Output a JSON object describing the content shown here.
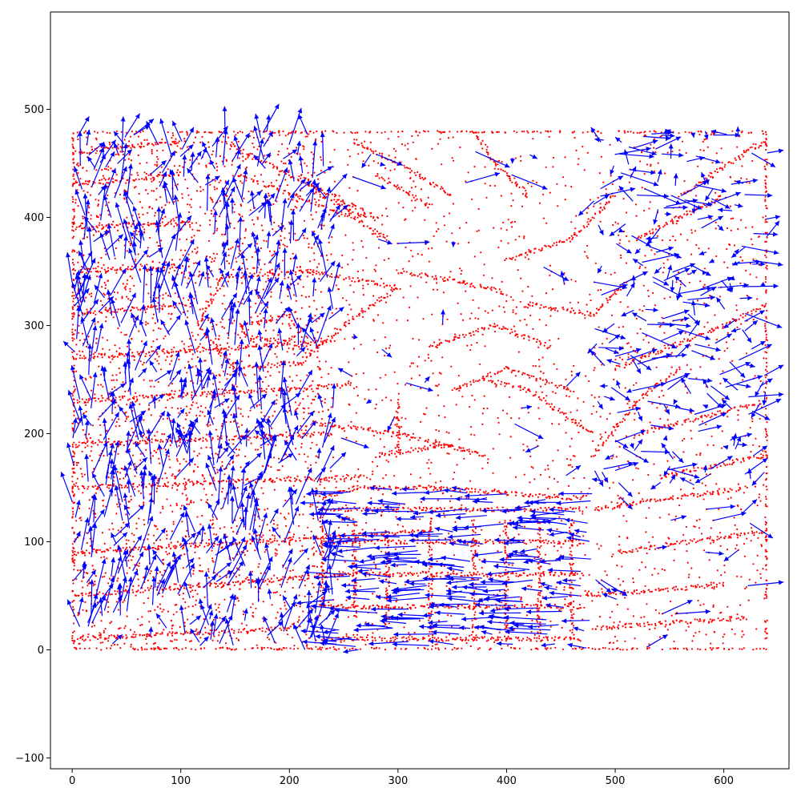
{
  "chart_data": {
    "type": "scatter",
    "title": "",
    "xlabel": "",
    "ylabel": "",
    "xlim": [
      -20,
      660
    ],
    "ylim": [
      -110,
      590
    ],
    "grid": false,
    "legend": "none",
    "x_ticks": [
      0,
      100,
      200,
      300,
      400,
      500,
      600
    ],
    "x_tick_labels": [
      "0",
      "100",
      "200",
      "300",
      "400",
      "500",
      "600"
    ],
    "y_ticks": [
      -100,
      0,
      100,
      200,
      300,
      400,
      500
    ],
    "y_tick_labels": [
      "−100",
      "0",
      "100",
      "200",
      "300",
      "400",
      "500"
    ],
    "point_extent": {
      "x": [
        0,
        640
      ],
      "y": [
        0,
        480
      ]
    },
    "series": [
      {
        "kind": "points",
        "color": "#ff0000",
        "paths": [
          [
            [
              0,
              0
            ],
            [
              640,
              0
            ]
          ],
          [
            [
              0,
              0
            ],
            [
              0,
              480
            ]
          ],
          [
            [
              640,
              0
            ],
            [
              640,
              480
            ]
          ],
          [
            [
              0,
              480
            ],
            [
              640,
              480
            ]
          ],
          [
            [
              155,
              300
            ],
            [
              200,
              310
            ],
            [
              210,
              295
            ],
            [
              200,
              285
            ],
            [
              160,
              290
            ],
            [
              155,
              300
            ]
          ],
          [
            [
              115,
              300
            ],
            [
              140,
              345
            ],
            [
              220,
              350
            ],
            [
              300,
              335
            ],
            [
              250,
              300
            ],
            [
              210,
              265
            ],
            [
              150,
              260
            ],
            [
              115,
              300
            ]
          ],
          [
            [
              0,
              10
            ],
            [
              200,
              20
            ]
          ],
          [
            [
              0,
              50
            ],
            [
              250,
              70
            ]
          ],
          [
            [
              0,
              90
            ],
            [
              330,
              110
            ]
          ],
          [
            [
              0,
              150
            ],
            [
              270,
              160
            ]
          ],
          [
            [
              0,
              190
            ],
            [
              240,
              200
            ]
          ],
          [
            [
              0,
              230
            ],
            [
              260,
              245
            ]
          ],
          [
            [
              0,
              270
            ],
            [
              240,
              285
            ]
          ],
          [
            [
              0,
              310
            ],
            [
              110,
              320
            ]
          ],
          [
            [
              0,
              350
            ],
            [
              100,
              355
            ]
          ],
          [
            [
              0,
              390
            ],
            [
              110,
              395
            ]
          ],
          [
            [
              0,
              430
            ],
            [
              100,
              440
            ]
          ],
          [
            [
              0,
              460
            ],
            [
              100,
              470
            ]
          ],
          [
            [
              140,
              470
            ],
            [
              200,
              440
            ],
            [
              280,
              400
            ]
          ],
          [
            [
              150,
              440
            ],
            [
              260,
              400
            ],
            [
              290,
              380
            ]
          ],
          [
            [
              260,
              470
            ],
            [
              300,
              450
            ],
            [
              350,
              420
            ]
          ],
          [
            [
              280,
              440
            ],
            [
              330,
              410
            ]
          ],
          [
            [
              210,
              440
            ],
            [
              230,
              420
            ],
            [
              270,
              400
            ]
          ],
          [
            [
              220,
              210
            ],
            [
              300,
              200
            ],
            [
              380,
              180
            ]
          ],
          [
            [
              350,
              240
            ],
            [
              400,
              260
            ],
            [
              460,
              240
            ]
          ],
          [
            [
              330,
              280
            ],
            [
              390,
              300
            ],
            [
              440,
              280
            ]
          ],
          [
            [
              300,
              350
            ],
            [
              360,
              340
            ],
            [
              400,
              330
            ]
          ],
          [
            [
              370,
              480
            ],
            [
              390,
              450
            ],
            [
              420,
              420
            ]
          ],
          [
            [
              400,
              360
            ],
            [
              460,
              380
            ],
            [
              500,
              420
            ]
          ],
          [
            [
              420,
              320
            ],
            [
              480,
              310
            ],
            [
              510,
              340
            ]
          ],
          [
            [
              380,
              250
            ],
            [
              420,
              240
            ],
            [
              480,
              200
            ]
          ],
          [
            [
              480,
              180
            ],
            [
              520,
              230
            ],
            [
              560,
              260
            ]
          ],
          [
            [
              500,
              260
            ],
            [
              600,
              300
            ],
            [
              640,
              320
            ]
          ],
          [
            [
              560,
              420
            ],
            [
              620,
              460
            ],
            [
              640,
              470
            ]
          ],
          [
            [
              520,
              380
            ],
            [
              560,
              400
            ],
            [
              600,
              420
            ]
          ],
          [
            [
              230,
              140
            ],
            [
              260,
              150
            ],
            [
              330,
              150
            ],
            [
              400,
              145
            ],
            [
              470,
              140
            ]
          ],
          [
            [
              230,
              40
            ],
            [
              230,
              130
            ]
          ],
          [
            [
              260,
              30
            ],
            [
              260,
              120
            ]
          ],
          [
            [
              290,
              20
            ],
            [
              290,
              110
            ]
          ],
          [
            [
              330,
              10
            ],
            [
              330,
              120
            ]
          ],
          [
            [
              370,
              10
            ],
            [
              370,
              120
            ]
          ],
          [
            [
              400,
              10
            ],
            [
              400,
              120
            ]
          ],
          [
            [
              430,
              10
            ],
            [
              430,
              120
            ]
          ],
          [
            [
              460,
              10
            ],
            [
              460,
              120
            ]
          ],
          [
            [
              230,
              10
            ],
            [
              470,
              10
            ]
          ],
          [
            [
              230,
              40
            ],
            [
              470,
              40
            ]
          ],
          [
            [
              230,
              70
            ],
            [
              470,
              70
            ]
          ],
          [
            [
              230,
              100
            ],
            [
              470,
              100
            ]
          ],
          [
            [
              230,
              130
            ],
            [
              470,
              130
            ]
          ],
          [
            [
              300,
              180
            ],
            [
              300,
              230
            ]
          ],
          [
            [
              280,
              180
            ],
            [
              350,
              190
            ]
          ],
          [
            [
              480,
              130
            ],
            [
              620,
              150
            ]
          ],
          [
            [
              500,
              90
            ],
            [
              640,
              110
            ]
          ],
          [
            [
              470,
              50
            ],
            [
              600,
              60
            ]
          ],
          [
            [
              480,
              20
            ],
            [
              620,
              30
            ]
          ],
          [
            [
              520,
              200
            ],
            [
              640,
              230
            ]
          ],
          [
            [
              540,
              160
            ],
            [
              640,
              180
            ]
          ]
        ]
      },
      {
        "kind": "quiver",
        "color": "#0000ff"
      }
    ]
  }
}
